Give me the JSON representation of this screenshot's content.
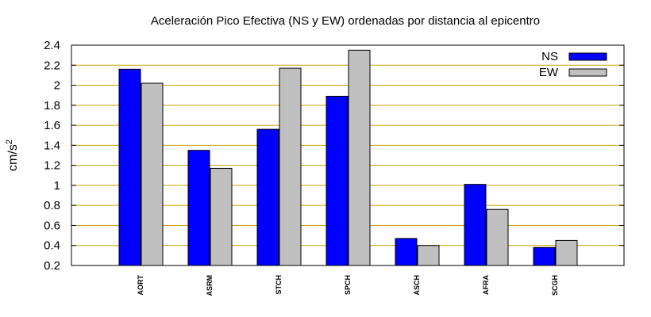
{
  "chart_data": {
    "type": "bar",
    "title": "Aceleración Pico Efectiva (NS y EW) ordenadas por distancia al epicentro",
    "ylabel": "cm/s",
    "ylabel_superscript": "2",
    "xlabel": "",
    "categories": [
      "AORT",
      "ASRM",
      "STCH",
      "SPCH",
      "ASCH",
      "AFRA",
      "SCGH"
    ],
    "series": [
      {
        "name": "NS",
        "color": "#0000ff",
        "values": [
          2.16,
          1.35,
          1.56,
          1.89,
          0.47,
          1.01,
          0.38
        ]
      },
      {
        "name": "EW",
        "color": "#c0c0c0",
        "values": [
          2.02,
          1.17,
          2.17,
          2.35,
          0.4,
          0.76,
          0.45
        ]
      }
    ],
    "ylim": [
      0.2,
      2.4
    ],
    "yticks": [
      "0.2",
      "0.4",
      "0.6",
      "0.8",
      "1",
      "1.2",
      "1.4",
      "1.6",
      "1.8",
      "2",
      "2.2",
      "2.4"
    ],
    "grid": true,
    "grid_color": "#c8a000",
    "legend_position": "top-right"
  }
}
